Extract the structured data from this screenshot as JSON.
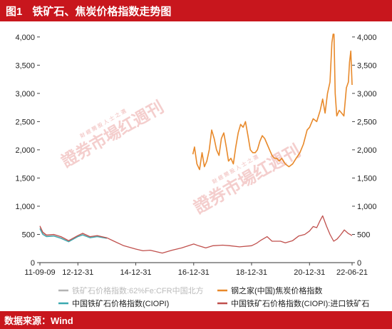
{
  "header": {
    "figure_no": "图1",
    "title": "铁矿石、焦炭价格指数走势图"
  },
  "footer": {
    "source": "数据来源：Wind"
  },
  "watermark": {
    "text": "證券市場红週刊",
    "small_text": "財 經 開 股 人 士 之 選"
  },
  "colors": {
    "brand_red": "#c8161d",
    "iron_cfr": "#b3b3b3",
    "coke": "#e8892a",
    "ciopi": "#3ba9b0",
    "ciopi_import": "#c0504d"
  },
  "chart_data": {
    "type": "line",
    "x_ticks": [
      "11-09-09",
      "12-12-31",
      "14-12-31",
      "16-12-31",
      "18-12-31",
      "20-12-31",
      "22-06-21"
    ],
    "y_ticks": [
      "0",
      "500",
      "1,000",
      "1,500",
      "2,000",
      "2,500",
      "3,000",
      "3,500",
      "4,000"
    ],
    "ylim": [
      0,
      4200
    ],
    "grid": false,
    "legend_position": "bottom",
    "series": [
      {
        "name": "铁矿石价格指数:62%Fe:CFR中国北方",
        "color": "#b3b3b3",
        "x": [
          "2011-09-09",
          "2011-10-15",
          "2011-12-01",
          "2012-03-01",
          "2012-06-01",
          "2012-09-05",
          "2012-12-31",
          "2013-03-01",
          "2013-06-01",
          "2013-09-01",
          "2013-12-31"
        ],
        "y": [
          620,
          520,
          470,
          480,
          440,
          380,
          470,
          500,
          450,
          470,
          440
        ]
      },
      {
        "name": "钢之家(中国)焦炭价格指数",
        "color": "#e8892a",
        "x": [
          "2016-12-20",
          "2017-01-10",
          "2017-02-10",
          "2017-03-15",
          "2017-04-15",
          "2017-05-15",
          "2017-06-15",
          "2017-07-15",
          "2017-08-15",
          "2017-09-15",
          "2017-10-15",
          "2017-11-15",
          "2017-12-15",
          "2018-01-15",
          "2018-02-15",
          "2018-03-15",
          "2018-04-15",
          "2018-05-15",
          "2018-06-15",
          "2018-07-15",
          "2018-08-15",
          "2018-09-15",
          "2018-10-15",
          "2018-11-15",
          "2018-12-15",
          "2019-01-15",
          "2019-02-15",
          "2019-03-15",
          "2019-04-15",
          "2019-05-15",
          "2019-06-15",
          "2019-07-15",
          "2019-08-15",
          "2019-09-15",
          "2019-10-15",
          "2019-11-15",
          "2019-12-15",
          "2020-01-15",
          "2020-03-01",
          "2020-04-15",
          "2020-06-01",
          "2020-07-15",
          "2020-09-01",
          "2020-10-15",
          "2020-12-01",
          "2021-01-01",
          "2021-02-15",
          "2021-04-01",
          "2021-05-15",
          "2021-06-15",
          "2021-07-15",
          "2021-08-15",
          "2021-09-15",
          "2021-10-10",
          "2021-10-25",
          "2021-11-05",
          "2021-11-20",
          "2021-12-10",
          "2022-01-10",
          "2022-02-10",
          "2022-03-10",
          "2022-04-10",
          "2022-05-05",
          "2022-05-20",
          "2022-06-05",
          "2022-06-21"
        ],
        "y": [
          1920,
          2050,
          1750,
          1650,
          1950,
          1700,
          1800,
          2000,
          2350,
          2200,
          2000,
          1900,
          2200,
          2300,
          2050,
          1800,
          1850,
          1750,
          2050,
          2300,
          2450,
          2400,
          2500,
          2250,
          2000,
          1950,
          1950,
          2000,
          2150,
          2250,
          2200,
          2100,
          2000,
          1900,
          1850,
          1850,
          1800,
          1850,
          1750,
          1700,
          1750,
          1850,
          1950,
          2100,
          2350,
          2400,
          2550,
          2500,
          2700,
          2900,
          2650,
          3000,
          3200,
          3900,
          4050,
          4050,
          3000,
          2600,
          2700,
          2650,
          2600,
          3100,
          3200,
          3550,
          3750,
          3150
        ]
      },
      {
        "name": "中国铁矿石价格指数(CIOPI)",
        "color": "#3ba9b0",
        "x": [
          "2011-09-09",
          "2011-10-15",
          "2011-12-01",
          "2012-03-01",
          "2012-06-01",
          "2012-09-05",
          "2012-12-31",
          "2013-03-01",
          "2013-06-01",
          "2013-09-01",
          "2013-12-31"
        ],
        "y": [
          600,
          500,
          460,
          470,
          430,
          370,
          460,
          490,
          440,
          460,
          430
        ]
      },
      {
        "name": "中国铁矿石价格指数(CIOPI):进口铁矿石",
        "color": "#c0504d",
        "x": [
          "2011-09-09",
          "2011-10-15",
          "2011-12-01",
          "2012-03-01",
          "2012-06-01",
          "2012-09-05",
          "2012-12-31",
          "2013-03-01",
          "2013-06-01",
          "2013-09-01",
          "2013-12-31",
          "2014-04-01",
          "2014-08-01",
          "2014-12-31",
          "2015-04-01",
          "2015-07-01",
          "2015-12-01",
          "2016-04-01",
          "2016-08-01",
          "2016-12-31",
          "2017-03-01",
          "2017-06-01",
          "2017-09-01",
          "2017-12-31",
          "2018-04-01",
          "2018-08-01",
          "2018-12-31",
          "2019-03-01",
          "2019-05-01",
          "2019-07-15",
          "2019-09-15",
          "2019-12-31",
          "2020-03-01",
          "2020-06-01",
          "2020-08-15",
          "2020-11-01",
          "2020-12-31",
          "2021-02-15",
          "2021-04-01",
          "2021-05-15",
          "2021-06-15",
          "2021-08-01",
          "2021-09-15",
          "2021-11-01",
          "2021-12-15",
          "2022-02-01",
          "2022-03-15",
          "2022-05-01",
          "2022-06-21"
        ],
        "y": [
          650,
          540,
          490,
          500,
          460,
          390,
          480,
          520,
          460,
          480,
          440,
          380,
          300,
          240,
          210,
          220,
          170,
          220,
          260,
          330,
          300,
          260,
          300,
          310,
          300,
          280,
          300,
          340,
          400,
          460,
          380,
          380,
          350,
          390,
          470,
          500,
          560,
          640,
          620,
          750,
          830,
          650,
          500,
          380,
          420,
          500,
          580,
          520,
          480
        ]
      }
    ]
  }
}
